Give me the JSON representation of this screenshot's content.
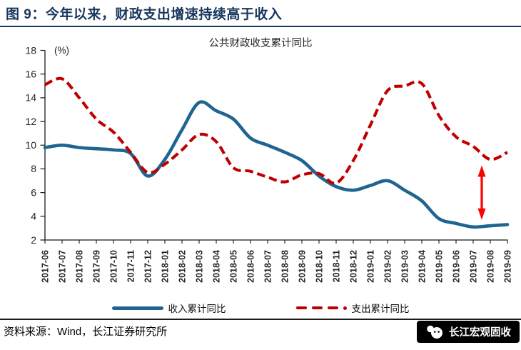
{
  "figure": {
    "title": "图 9：今年以来，财政支出增速持续高于收入",
    "source_note": "资料来源：Wind，长江证券研究所",
    "badge_label": "长江宏观固收"
  },
  "chart_data": {
    "type": "line",
    "title": "公共财政收支累计同比",
    "unit_label": "(%)",
    "xlabel": "",
    "ylabel": "",
    "ylim": [
      2,
      18
    ],
    "ytick_step": 2,
    "grid": false,
    "legend_position": "bottom",
    "categories": [
      "2017-06",
      "2017-07",
      "2017-08",
      "2017-09",
      "2017-10",
      "2017-11",
      "2017-12",
      "2018-01",
      "2018-02",
      "2018-03",
      "2018-04",
      "2018-05",
      "2018-06",
      "2018-07",
      "2018-08",
      "2018-09",
      "2018-10",
      "2018-11",
      "2018-12",
      "2019-01",
      "2019-02",
      "2019-03",
      "2019-04",
      "2019-05",
      "2019-06",
      "2019-07",
      "2019-08",
      "2019-09"
    ],
    "series": [
      {
        "name": "收入累计同比",
        "style": "solid",
        "color": "#1F6592",
        "values": [
          9.8,
          10.0,
          9.8,
          9.7,
          9.6,
          9.3,
          7.4,
          8.8,
          11.3,
          13.6,
          12.9,
          12.2,
          10.6,
          10.0,
          9.4,
          8.7,
          7.4,
          6.5,
          6.2,
          6.6,
          7.0,
          6.2,
          5.3,
          3.8,
          3.4,
          3.1,
          3.2,
          3.3
        ]
      },
      {
        "name": "支出累计同比",
        "style": "dashed",
        "color": "#C00000",
        "values": [
          15.1,
          15.6,
          14.0,
          12.2,
          11.1,
          9.4,
          7.7,
          8.4,
          9.6,
          10.9,
          10.3,
          8.1,
          7.8,
          7.3,
          6.9,
          7.5,
          7.6,
          6.8,
          8.7,
          11.7,
          14.6,
          15.0,
          15.2,
          12.5,
          10.7,
          9.9,
          8.8,
          9.4
        ]
      }
    ],
    "annotation": {
      "type": "vertical-double-arrow",
      "color": "#FE0000",
      "x_category": "2019-08",
      "from_value": 8.3,
      "to_value": 3.7
    }
  },
  "colors": {
    "title": "#17375E",
    "axis": "#1a1a1a",
    "tick_label": "#262626",
    "badge_bg": "#000000",
    "badge_text": "#FFFFFF"
  }
}
